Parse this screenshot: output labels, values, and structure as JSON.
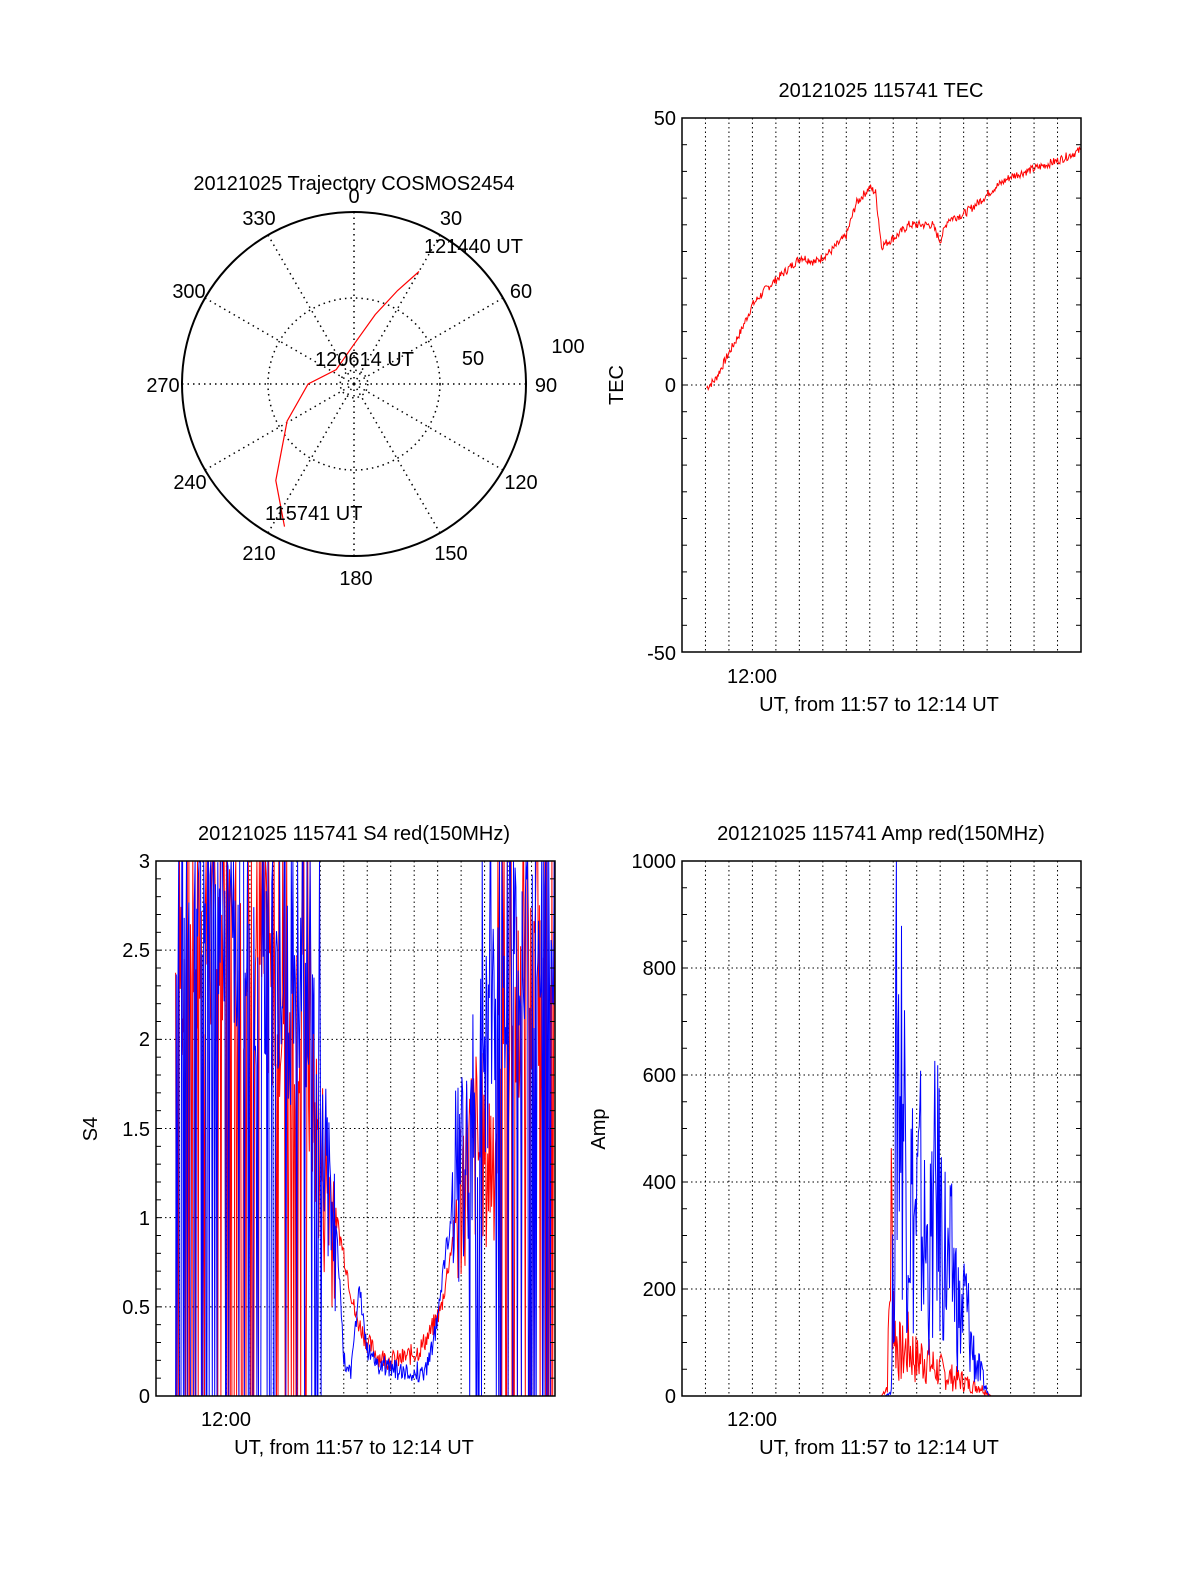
{
  "chart_data": [
    {
      "type": "polar",
      "title": "20121025 Trajectory COSMOS2454",
      "angle_labels": [
        "0",
        "30",
        "60",
        "90",
        "120",
        "150",
        "180",
        "210",
        "240",
        "270",
        "300",
        "330"
      ],
      "radius_labels": [
        "50",
        "100"
      ],
      "grid": true,
      "colors": {
        "trajectory": "#ff0000"
      },
      "annotations": [
        "121440 UT",
        "120614 UT",
        "115741 UT"
      ],
      "series": [
        {
          "points": [
            {
              "az": 206,
              "el": 7
            },
            {
              "az": 219,
              "el": 25
            },
            {
              "az": 241,
              "el": 50
            },
            {
              "az": 270,
              "el": 66
            },
            {
              "az": 309,
              "el": 78
            },
            {
              "az": 356,
              "el": 71
            },
            {
              "az": 17,
              "el": 52
            },
            {
              "az": 25,
              "el": 36
            },
            {
              "az": 30,
              "el": 22
            }
          ]
        }
      ]
    },
    {
      "type": "line",
      "title": "20121025 115741 TEC",
      "xlabel": "UT, from 11:57 to 12:14 UT",
      "ylabel": "TEC",
      "x_tick_labels": [
        "12:00"
      ],
      "y_tick_labels": [
        "50",
        "0",
        "-50"
      ],
      "ylim": [
        -50,
        50
      ],
      "grid": true,
      "colors": {
        "series": "#ff0000"
      },
      "series": [
        {
          "x": [
            "11:58:03",
            "11:58:25",
            "11:59:00",
            "11:59:30",
            "12:00:00",
            "12:00:35",
            "12:01:20",
            "12:02:05",
            "12:02:40",
            "12:03:20",
            "12:04:00",
            "12:04:25",
            "12:05:00",
            "12:05:15",
            "12:05:30",
            "12:06:10",
            "12:06:40",
            "12:07:10",
            "12:07:40",
            "12:08:00",
            "12:08:20",
            "12:09:00",
            "12:09:35",
            "12:10:20",
            "12:11:00",
            "12:11:40",
            "12:12:20",
            "12:13:00",
            "12:13:30",
            "12:14:00"
          ],
          "y": [
            -0.5,
            1,
            6,
            10,
            15,
            18,
            21,
            24,
            23,
            25,
            28,
            34,
            37,
            36,
            26,
            28,
            30,
            30,
            30,
            27,
            31,
            32,
            34,
            37,
            39,
            40,
            41,
            42,
            43,
            44
          ]
        }
      ]
    },
    {
      "type": "line",
      "title": "20121025 115741 S4 red(150MHz)",
      "xlabel": "UT, from 11:57 to 12:14 UT",
      "ylabel": "S4",
      "x_tick_labels": [
        "12:00"
      ],
      "y_tick_labels": [
        "0",
        "0.5",
        "1",
        "1.5",
        "2",
        "2.5",
        "3"
      ],
      "ylim": [
        0,
        3
      ],
      "grid": true,
      "colors": {
        "red": "#ff0000",
        "blue": "#0000ff"
      },
      "series": [
        {
          "color": "red",
          "x": [
            "11:57:50",
            "11:58:30",
            "11:59:10",
            "11:59:50",
            "12:00:30",
            "12:01:10",
            "12:01:50",
            "12:02:30",
            "12:03:10",
            "12:03:40",
            "12:04:00",
            "12:04:30",
            "12:05:00",
            "12:05:30",
            "12:06:00",
            "12:06:30",
            "12:07:00",
            "12:07:20",
            "12:07:40",
            "12:08:10",
            "12:08:40",
            "12:09:10",
            "12:09:40",
            "12:10:10",
            "12:10:40",
            "12:11:10",
            "12:11:40",
            "12:12:10",
            "12:12:40",
            "12:13:10",
            "12:13:40",
            "12:14:00"
          ],
          "y": [
            2.3,
            2.6,
            2.5,
            2.6,
            2.4,
            2.5,
            2.3,
            2.2,
            2.0,
            1.7,
            1.3,
            1.1,
            0.8,
            0.45,
            0.3,
            0.22,
            0.2,
            0.2,
            0.22,
            0.25,
            0.35,
            0.5,
            0.9,
            1.3,
            1.4,
            1.3,
            1.6,
            2.0,
            2.4,
            2.2,
            2.1,
            2.0
          ]
        },
        {
          "color": "blue",
          "x": [
            "11:57:50",
            "11:58:30",
            "11:59:10",
            "11:59:50",
            "12:00:30",
            "12:01:10",
            "12:01:50",
            "12:02:30",
            "12:03:10",
            "12:03:40",
            "12:04:00",
            "12:04:20",
            "12:04:40",
            "12:05:00",
            "12:05:20",
            "12:05:40",
            "12:06:00",
            "12:06:30",
            "12:07:00",
            "12:07:30",
            "12:08:00",
            "12:08:30",
            "12:08:50",
            "12:09:20",
            "12:09:50",
            "12:10:20",
            "12:10:50",
            "12:11:20",
            "12:11:50",
            "12:12:20",
            "12:12:50",
            "12:13:20",
            "12:14:00"
          ],
          "y": [
            2.4,
            2.7,
            2.6,
            2.5,
            2.6,
            2.4,
            2.5,
            2.3,
            2.1,
            1.9,
            1.6,
            1.2,
            1.0,
            0.2,
            0.15,
            0.6,
            0.25,
            0.18,
            0.15,
            0.14,
            0.13,
            0.15,
            0.3,
            0.8,
            1.2,
            1.5,
            1.8,
            2.0,
            2.3,
            2.5,
            2.4,
            2.6,
            2.5
          ]
        }
      ]
    },
    {
      "type": "line",
      "title": "20121025 115741 Amp red(150MHz)",
      "xlabel": "UT, from 11:57 to 12:14 UT",
      "ylabel": "Amp",
      "x_tick_labels": [
        "12:00"
      ],
      "y_tick_labels": [
        "0",
        "200",
        "400",
        "600",
        "800",
        "1000"
      ],
      "ylim": [
        0,
        1000
      ],
      "grid": true,
      "colors": {
        "red": "#ff0000",
        "blue": "#0000ff"
      },
      "series": [
        {
          "color": "red",
          "x": [
            "11:58:03",
            "12:05:00",
            "12:05:30",
            "12:05:45",
            "12:05:55",
            "12:06:05",
            "12:06:20",
            "12:06:40",
            "12:07:00",
            "12:07:20",
            "12:07:40",
            "12:08:00",
            "12:08:20",
            "12:08:40",
            "12:09:00",
            "12:09:20",
            "12:09:40",
            "12:09:55",
            "12:10:10",
            "12:14:00"
          ],
          "y": [
            0,
            0,
            0,
            20,
            350,
            120,
            80,
            100,
            70,
            80,
            60,
            50,
            40,
            35,
            30,
            20,
            20,
            10,
            0,
            0
          ]
        },
        {
          "color": "blue",
          "x": [
            "11:58:03",
            "12:05:00",
            "12:05:40",
            "12:05:55",
            "12:06:10",
            "12:06:25",
            "12:06:40",
            "12:06:55",
            "12:07:10",
            "12:07:20",
            "12:07:35",
            "12:07:50",
            "12:08:05",
            "12:08:20",
            "12:08:35",
            "12:08:50",
            "12:09:05",
            "12:09:20",
            "12:09:35",
            "12:09:50",
            "12:10:05",
            "12:14:00"
          ],
          "y": [
            0,
            0,
            0,
            10,
            740,
            600,
            420,
            350,
            390,
            300,
            280,
            420,
            330,
            240,
            250,
            150,
            190,
            100,
            60,
            30,
            0,
            0
          ]
        }
      ]
    }
  ]
}
